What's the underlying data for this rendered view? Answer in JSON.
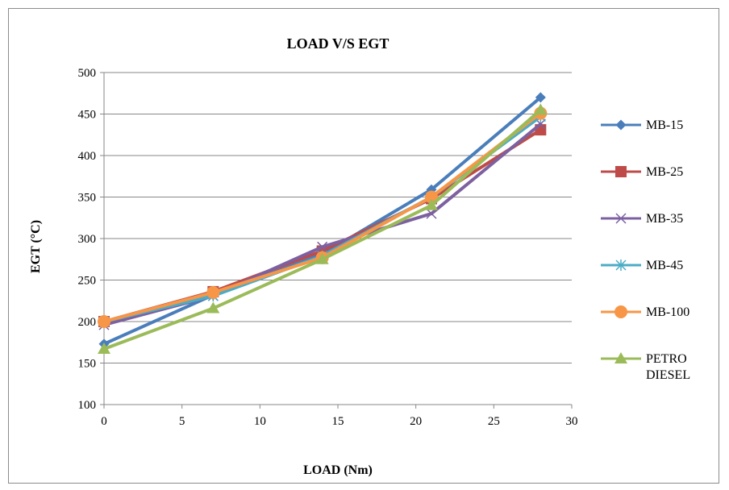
{
  "chart_data": {
    "type": "line",
    "title": "LOAD V/S EGT",
    "xlabel": "LOAD (Nm)",
    "ylabel": "EGT (°C)",
    "xlim": [
      0,
      30
    ],
    "ylim": [
      100,
      500
    ],
    "x_ticks": [
      "0",
      "5",
      "10",
      "15",
      "20",
      "25",
      "30"
    ],
    "y_ticks": [
      "100",
      "150",
      "200",
      "250",
      "300",
      "350",
      "400",
      "450",
      "500"
    ],
    "grid": "horizontal",
    "legend_position": "right",
    "series": [
      {
        "name": "MB-15",
        "color": "#4a7ebb",
        "marker": "diamond",
        "x": [
          0,
          7,
          14,
          21,
          28
        ],
        "values": [
          173,
          232,
          281,
          359,
          470
        ]
      },
      {
        "name": "MB-25",
        "color": "#be4b48",
        "marker": "square",
        "x": [
          0,
          7,
          14,
          21,
          28
        ],
        "values": [
          200,
          236,
          285,
          348,
          431
        ]
      },
      {
        "name": "MB-35",
        "color": "#7d60a0",
        "marker": "x",
        "x": [
          0,
          7,
          14,
          21,
          28
        ],
        "values": [
          196,
          231,
          290,
          330,
          438
        ]
      },
      {
        "name": "MB-45",
        "color": "#4bacc6",
        "marker": "asterisk",
        "x": [
          0,
          7,
          14,
          21,
          28
        ],
        "values": [
          200,
          231,
          279,
          350,
          447
        ]
      },
      {
        "name": "MB-100",
        "color": "#f79646",
        "marker": "circle",
        "x": [
          0,
          7,
          14,
          21,
          28
        ],
        "values": [
          200,
          235,
          277,
          350,
          451
        ]
      },
      {
        "name": "PETRO DIESEL",
        "color": "#9bbb59",
        "marker": "triangle",
        "x": [
          0,
          7,
          14,
          21,
          28
        ],
        "values": [
          167,
          216,
          275,
          340,
          455
        ]
      }
    ]
  }
}
